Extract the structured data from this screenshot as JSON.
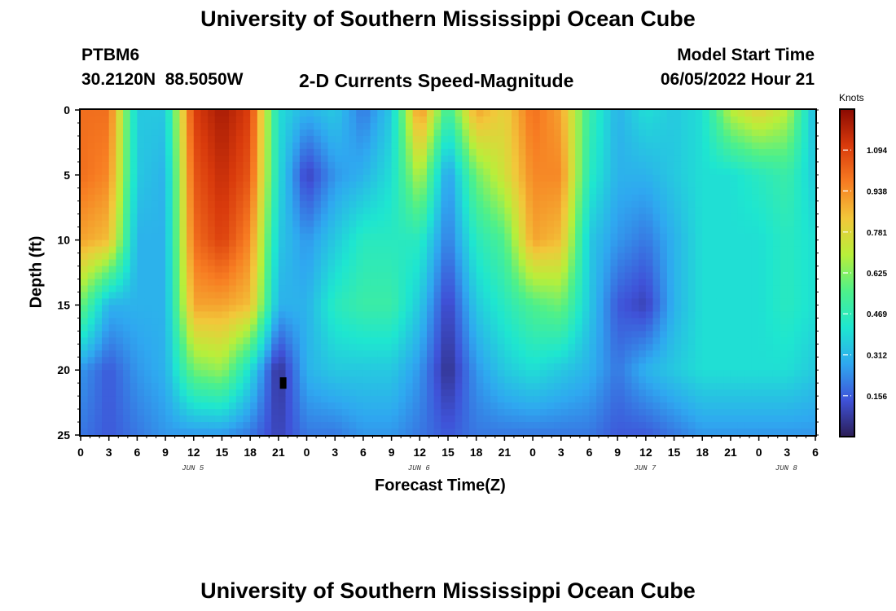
{
  "title": "University of Southern Mississippi Ocean Cube",
  "footer_title": "University of Southern Mississippi Ocean Cube",
  "station": {
    "id": "PTBM6",
    "coords": "30.2120N  88.5050W"
  },
  "subtitle": "2-D Currents Speed-Magnitude",
  "model_start": {
    "label": "Model Start Time",
    "value": "06/05/2022 Hour 21"
  },
  "chart_data": {
    "type": "heatmap",
    "title": "2-D Currents Speed-Magnitude",
    "xlabel": "Forecast Time(Z)",
    "ylabel": "Depth (ft)",
    "ylim": [
      0,
      25
    ],
    "y_ticks": [
      "0",
      "5",
      "10",
      "15",
      "20",
      "25"
    ],
    "x_range_hours": [
      0,
      78
    ],
    "x_ticks": [
      "0",
      "3",
      "6",
      "9",
      "12",
      "15",
      "18",
      "21",
      "0",
      "3",
      "6",
      "9",
      "12",
      "15",
      "18",
      "21",
      "0",
      "3",
      "6",
      "9",
      "12",
      "15",
      "18",
      "21",
      "0",
      "3",
      "6"
    ],
    "day_labels": [
      {
        "label": "JUN 5",
        "hour": 12
      },
      {
        "label": "JUN 6",
        "hour": 36
      },
      {
        "label": "JUN 7",
        "hour": 60
      },
      {
        "label": "JUN 8",
        "hour": 75
      }
    ],
    "colorbar": {
      "unit": "Knots",
      "min": 0,
      "max": 1.25,
      "ticks": [
        "0.156",
        "0.312",
        "0.469",
        "0.625",
        "0.781",
        "0.938",
        "1.094"
      ],
      "tick_values": [
        0.156,
        0.312,
        0.469,
        0.625,
        0.781,
        0.938,
        1.094
      ],
      "colors": [
        "#2b1d55",
        "#3f52d8",
        "#2fa8f0",
        "#1ee6d0",
        "#4ef08a",
        "#b8ef3a",
        "#f2c73a",
        "#f77c22",
        "#d93a0c",
        "#8a0a02"
      ]
    },
    "depth_rows": [
      0,
      5,
      10,
      15,
      20,
      25
    ],
    "hour_cols": [
      0,
      3,
      6,
      9,
      12,
      15,
      18,
      21,
      24,
      27,
      30,
      33,
      36,
      39,
      42,
      45,
      48,
      51,
      54,
      57,
      60,
      63,
      66,
      69,
      72,
      75,
      78
    ],
    "speed_knots": [
      [
        1.0,
        1.0,
        0.35,
        0.35,
        1.1,
        1.2,
        1.1,
        0.4,
        0.3,
        0.35,
        0.2,
        0.35,
        0.95,
        0.5,
        0.9,
        0.8,
        1.0,
        0.9,
        0.5,
        0.3,
        0.4,
        0.35,
        0.4,
        0.7,
        0.8,
        0.7,
        0.3
      ],
      [
        1.0,
        0.95,
        0.35,
        0.3,
        1.05,
        1.15,
        1.05,
        0.4,
        0.1,
        0.25,
        0.3,
        0.4,
        0.7,
        0.25,
        0.6,
        0.75,
        0.95,
        0.95,
        0.45,
        0.3,
        0.3,
        0.35,
        0.4,
        0.4,
        0.45,
        0.5,
        0.35
      ],
      [
        0.9,
        0.85,
        0.3,
        0.3,
        1.0,
        1.1,
        0.95,
        0.35,
        0.25,
        0.35,
        0.45,
        0.45,
        0.45,
        0.2,
        0.45,
        0.55,
        0.9,
        0.85,
        0.35,
        0.25,
        0.2,
        0.3,
        0.4,
        0.4,
        0.4,
        0.45,
        0.4
      ],
      [
        0.6,
        0.3,
        0.3,
        0.3,
        0.9,
        0.9,
        0.85,
        0.3,
        0.3,
        0.45,
        0.5,
        0.5,
        0.35,
        0.1,
        0.35,
        0.45,
        0.55,
        0.6,
        0.35,
        0.15,
        0.1,
        0.3,
        0.4,
        0.4,
        0.4,
        0.45,
        0.4
      ],
      [
        0.25,
        0.15,
        0.25,
        0.3,
        0.6,
        0.65,
        0.4,
        0.05,
        0.3,
        0.35,
        0.35,
        0.35,
        0.25,
        0.05,
        0.25,
        0.35,
        0.4,
        0.35,
        0.3,
        0.2,
        0.3,
        0.35,
        0.4,
        0.4,
        0.4,
        0.4,
        0.35
      ],
      [
        0.2,
        0.15,
        0.2,
        0.25,
        0.25,
        0.25,
        0.2,
        0.1,
        0.2,
        0.2,
        0.25,
        0.25,
        0.2,
        0.15,
        0.2,
        0.2,
        0.2,
        0.2,
        0.2,
        0.15,
        0.15,
        0.2,
        0.25,
        0.25,
        0.25,
        0.25,
        0.25
      ]
    ],
    "min_marker": {
      "hour": 21.5,
      "depth": 21
    }
  }
}
